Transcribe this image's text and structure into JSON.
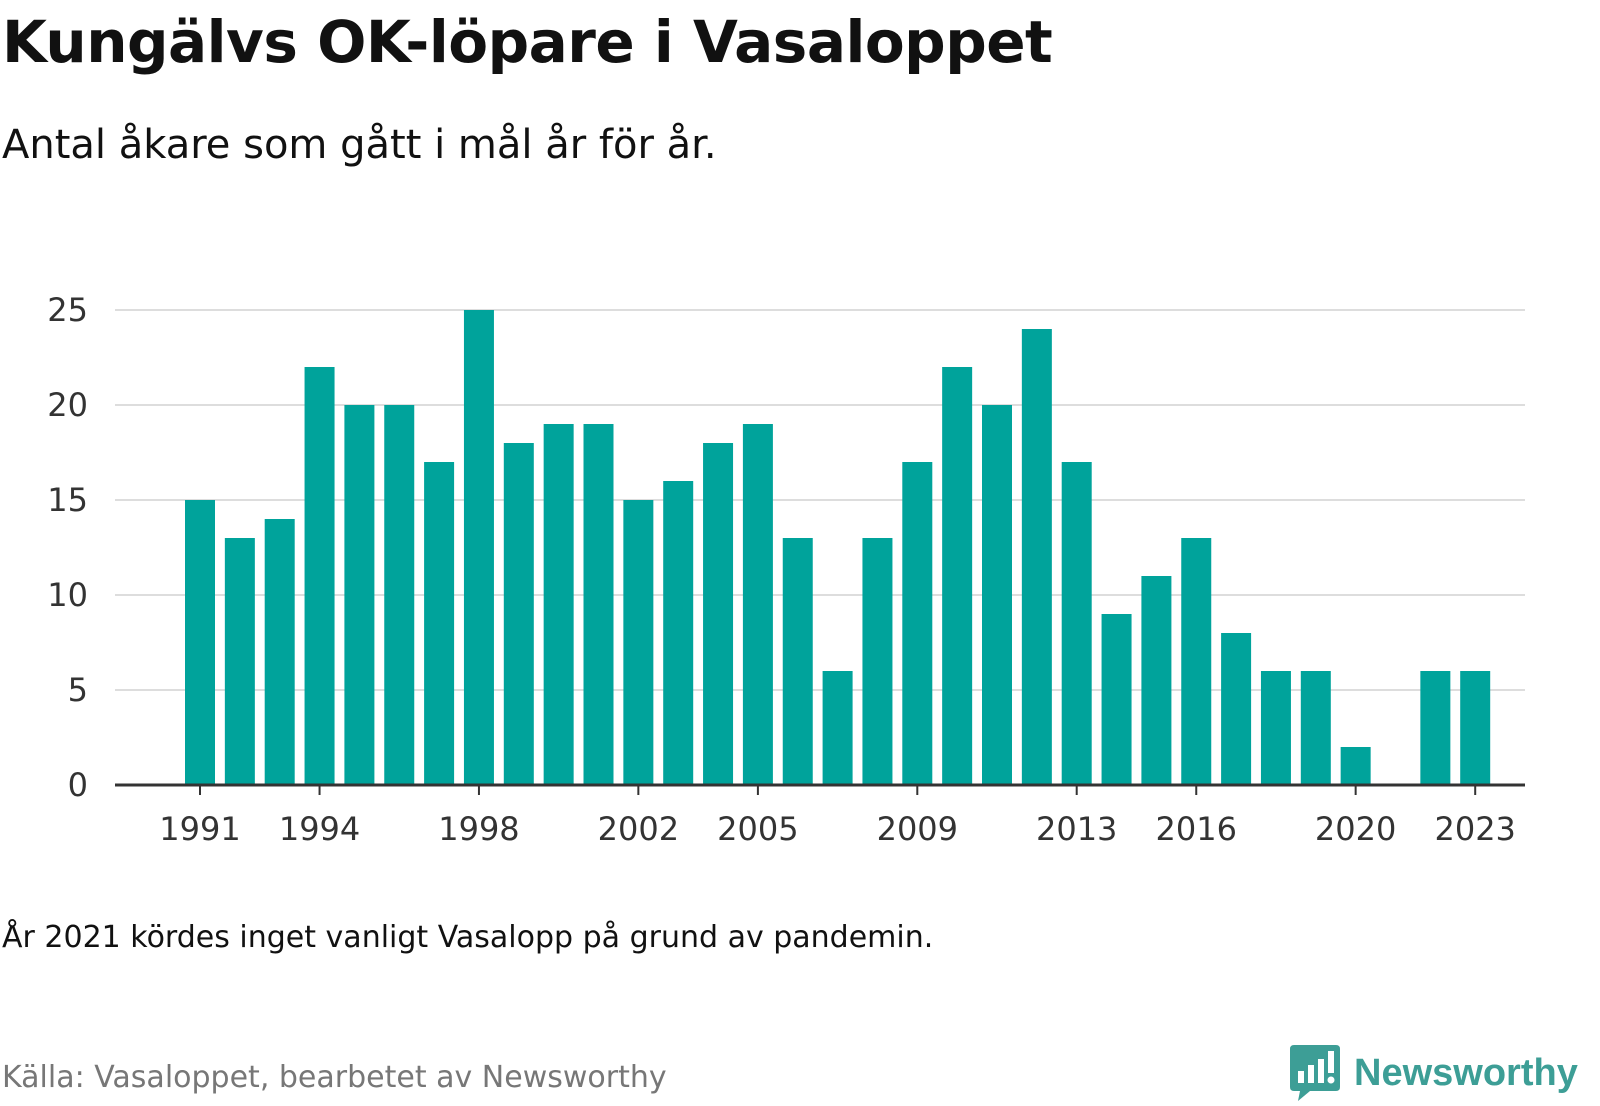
{
  "title": "Kungälvs OK-löpare i Vasaloppet",
  "subtitle": "Antal åkare som gått i mål år för år.",
  "note": "År 2021 kördes inget vanligt Vasalopp på grund av pandemin.",
  "source": "Källa: Vasaloppet, bearbetet av Newsworthy",
  "brand": {
    "name": "Newsworthy",
    "icon": "newsworthy-logo-icon",
    "color": "#3d9e96"
  },
  "colors": {
    "bar": "#00a39b",
    "grid": "#dddddd",
    "axis": "#333333"
  },
  "chart_data": {
    "type": "bar",
    "categories": [
      "1991",
      "1992",
      "1993",
      "1994",
      "1995",
      "1996",
      "1997",
      "1998",
      "1999",
      "2000",
      "2001",
      "2002",
      "2003",
      "2004",
      "2005",
      "2006",
      "2007",
      "2008",
      "2009",
      "2010",
      "2011",
      "2012",
      "2013",
      "2014",
      "2015",
      "2016",
      "2017",
      "2018",
      "2019",
      "2020",
      "2021",
      "2022",
      "2023"
    ],
    "values": [
      15,
      13,
      14,
      22,
      20,
      20,
      17,
      25,
      18,
      19,
      19,
      15,
      16,
      18,
      19,
      13,
      6,
      13,
      17,
      22,
      20,
      24,
      17,
      9,
      11,
      13,
      8,
      6,
      6,
      2,
      0,
      6,
      6
    ],
    "xtick_labels": [
      "1991",
      "1994",
      "1998",
      "2002",
      "2005",
      "2009",
      "2013",
      "2016",
      "2020",
      "2023"
    ],
    "yticks": [
      0,
      5,
      10,
      15,
      20,
      25
    ],
    "ylim": [
      0,
      25
    ],
    "grid": true
  }
}
